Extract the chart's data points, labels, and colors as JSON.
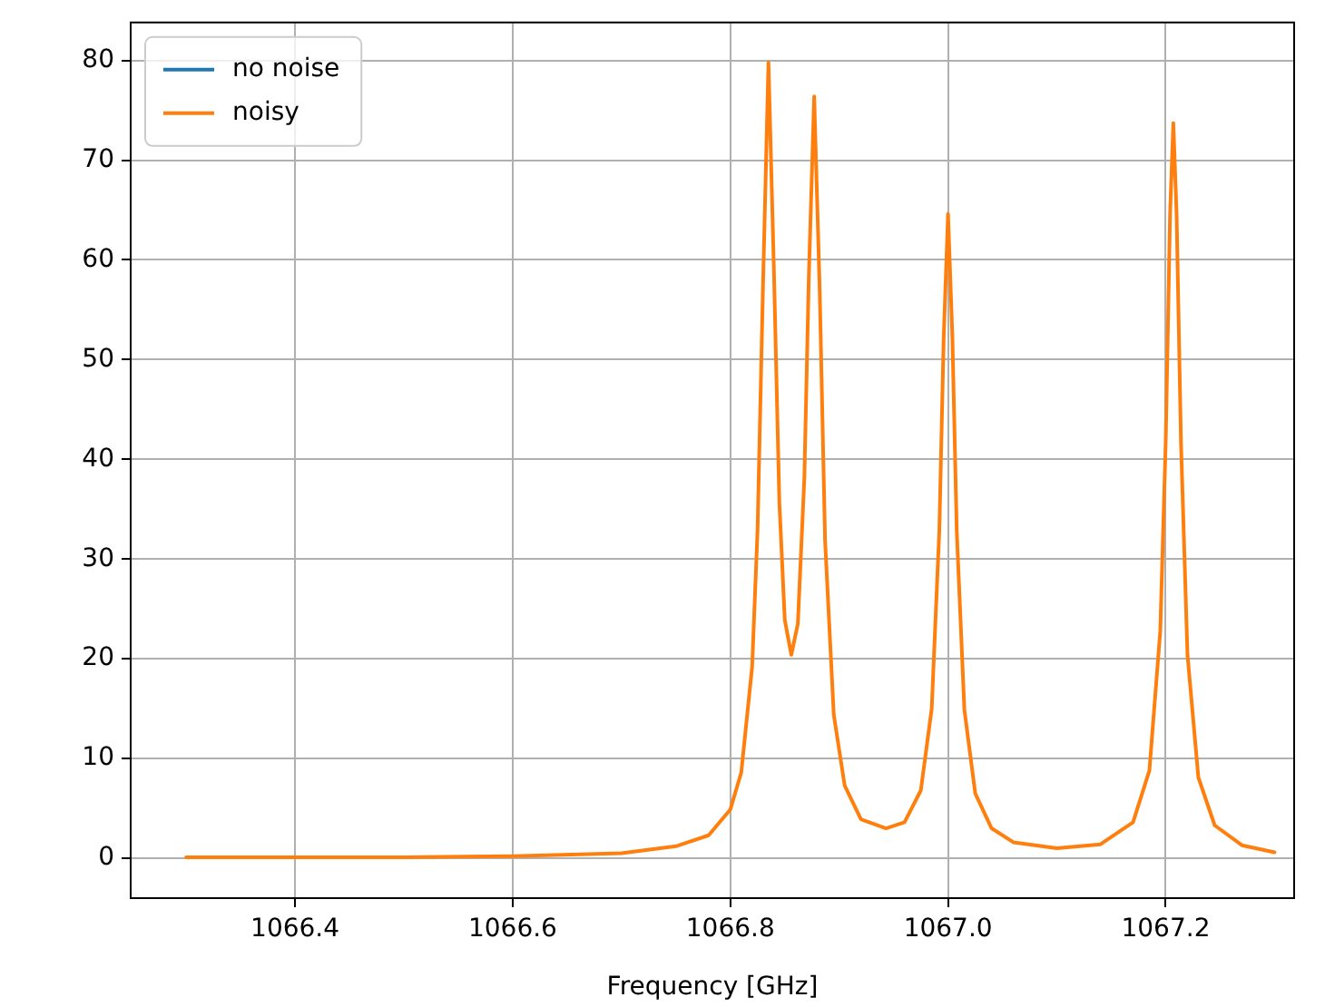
{
  "chart_data": {
    "type": "line",
    "xlabel": "Frequency [GHz]",
    "x": [
      1066.3,
      1066.4,
      1066.5,
      1066.6,
      1066.7,
      1066.75,
      1066.78,
      1066.8,
      1066.81,
      1066.82,
      1066.825,
      1066.83,
      1066.835,
      1066.84,
      1066.845,
      1066.85,
      1066.856,
      1066.862,
      1066.868,
      1066.872,
      1066.877,
      1066.882,
      1066.887,
      1066.895,
      1066.905,
      1066.92,
      1066.943,
      1066.96,
      1066.975,
      1066.985,
      1066.992,
      1066.996,
      1067.0,
      1067.004,
      1067.008,
      1067.015,
      1067.025,
      1067.04,
      1067.06,
      1067.1,
      1067.14,
      1067.17,
      1067.185,
      1067.195,
      1067.2,
      1067.204,
      1067.207,
      1067.21,
      1067.214,
      1067.22,
      1067.23,
      1067.245,
      1067.27,
      1067.3
    ],
    "series": [
      {
        "name": "no noise",
        "color": "#1f77b4",
        "values": [
          null,
          null,
          null,
          null,
          null,
          null,
          null,
          null,
          null,
          null,
          null,
          null,
          null,
          null,
          null,
          null,
          null,
          null,
          null,
          null,
          null,
          null,
          null,
          null,
          null,
          null,
          null,
          null,
          null,
          null,
          null,
          null,
          null,
          null,
          null,
          null,
          null,
          null,
          null,
          null,
          null,
          null,
          null,
          null,
          null,
          null,
          null,
          null,
          null,
          null,
          null,
          null,
          null,
          null
        ]
      },
      {
        "name": "noisy",
        "color": "#ff7f0e",
        "values": [
          0.1,
          0.1,
          0.1,
          0.2,
          0.5,
          1.2,
          2.3,
          4.9,
          8.6,
          19.2,
          33.0,
          57.5,
          79.8,
          59.0,
          35.7,
          23.9,
          20.4,
          23.5,
          38.2,
          58.0,
          76.4,
          57.3,
          31.9,
          14.4,
          7.3,
          3.9,
          3.0,
          3.6,
          6.8,
          15.0,
          32.9,
          52.2,
          64.6,
          52.2,
          32.8,
          14.9,
          6.5,
          3.0,
          1.6,
          1.0,
          1.4,
          3.6,
          8.8,
          22.8,
          41.8,
          64.6,
          73.7,
          64.6,
          41.8,
          20.4,
          8.1,
          3.3,
          1.3,
          0.6
        ]
      }
    ],
    "xlim": [
      1066.249,
      1067.318
    ],
    "ylim": [
      -4,
      83.8
    ],
    "xticks": [
      1066.4,
      1066.6,
      1066.8,
      {
        "value": 1067,
        "label": "1067.0"
      },
      1067.2
    ],
    "yticks": [
      0,
      10,
      20,
      30,
      40,
      50,
      60,
      70,
      80
    ],
    "grid": true,
    "legend": "top left",
    "marker": "none",
    "line_style": "solid"
  }
}
